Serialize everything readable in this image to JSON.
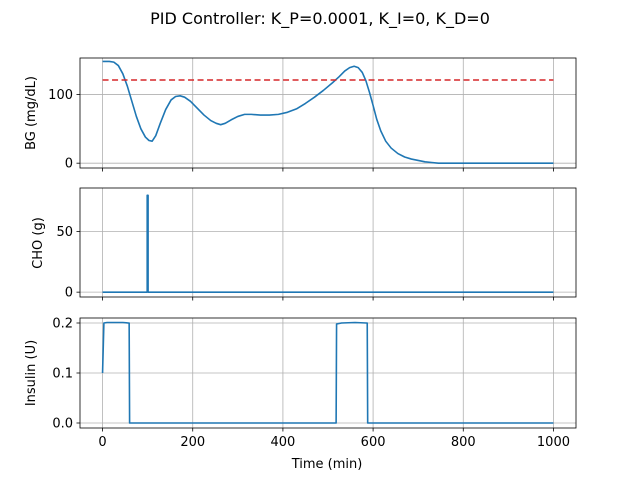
{
  "chart_data": {
    "type": "line",
    "title": "PID Controller: K_P=0.0001, K_I=0, K_D=0",
    "xlabel": "Time (min)",
    "xlim": [
      -50,
      1050
    ],
    "x_ticks": [
      0,
      200,
      400,
      600,
      800,
      1000
    ],
    "x_tick_labels": [
      "0",
      "200",
      "400",
      "600",
      "800",
      "1000"
    ],
    "grid": true,
    "subplots": [
      {
        "ylabel": "BG (mg/dL)",
        "ylim": [
          -7,
          153
        ],
        "y_ticks": [
          0,
          100
        ],
        "y_tick_labels": [
          "0",
          "100"
        ],
        "series": [
          {
            "color": "#1f77b4",
            "style": "solid",
            "points": [
              [
                0,
                148
              ],
              [
                15,
                148
              ],
              [
                25,
                147
              ],
              [
                35,
                142
              ],
              [
                45,
                130
              ],
              [
                55,
                112
              ],
              [
                65,
                90
              ],
              [
                75,
                68
              ],
              [
                85,
                50
              ],
              [
                95,
                38
              ],
              [
                103,
                33
              ],
              [
                110,
                32
              ],
              [
                118,
                40
              ],
              [
                128,
                58
              ],
              [
                140,
                78
              ],
              [
                152,
                92
              ],
              [
                162,
                97
              ],
              [
                172,
                98
              ],
              [
                182,
                96
              ],
              [
                195,
                90
              ],
              [
                210,
                80
              ],
              [
                225,
                70
              ],
              [
                240,
                62
              ],
              [
                252,
                58
              ],
              [
                262,
                56
              ],
              [
                272,
                58
              ],
              [
                285,
                63
              ],
              [
                300,
                68
              ],
              [
                315,
                71
              ],
              [
                330,
                71
              ],
              [
                350,
                70
              ],
              [
                370,
                70
              ],
              [
                390,
                71
              ],
              [
                410,
                74
              ],
              [
                430,
                79
              ],
              [
                450,
                87
              ],
              [
                470,
                96
              ],
              [
                490,
                106
              ],
              [
                510,
                117
              ],
              [
                525,
                126
              ],
              [
                537,
                134
              ],
              [
                548,
                139
              ],
              [
                558,
                141
              ],
              [
                567,
                139
              ],
              [
                576,
                132
              ],
              [
                584,
                120
              ],
              [
                592,
                103
              ],
              [
                600,
                84
              ],
              [
                608,
                64
              ],
              [
                617,
                47
              ],
              [
                628,
                32
              ],
              [
                640,
                22
              ],
              [
                655,
                14
              ],
              [
                670,
                9
              ],
              [
                685,
                6
              ],
              [
                700,
                4
              ],
              [
                715,
                2
              ],
              [
                730,
                1
              ],
              [
                745,
                0
              ],
              [
                1000,
                0
              ]
            ]
          },
          {
            "color": "#d62728",
            "style": "dashed",
            "points": [
              [
                0,
                121
              ],
              [
                1000,
                121
              ]
            ]
          }
        ]
      },
      {
        "ylabel": "CHO (g)",
        "ylim": [
          -4,
          86
        ],
        "y_ticks": [
          0,
          50
        ],
        "y_tick_labels": [
          "0",
          "50"
        ],
        "series": [
          {
            "color": "#1f77b4",
            "style": "solid",
            "points": [
              [
                0,
                0
              ],
              [
                99,
                0
              ],
              [
                99,
                80
              ],
              [
                101,
                80
              ],
              [
                101,
                0
              ],
              [
                1000,
                0
              ]
            ]
          }
        ]
      },
      {
        "ylabel": "Insulin (U)",
        "ylim": [
          -0.01,
          0.21
        ],
        "y_ticks": [
          0,
          0.1,
          0.2
        ],
        "y_tick_labels": [
          "0.0",
          "0.1",
          "0.2"
        ],
        "series": [
          {
            "color": "#1f77b4",
            "style": "solid",
            "points": [
              [
                0,
                0.1
              ],
              [
                3,
                0.2
              ],
              [
                10,
                0.201
              ],
              [
                25,
                0.201
              ],
              [
                45,
                0.201
              ],
              [
                57,
                0.2
              ],
              [
                59,
                0.2
              ],
              [
                60,
                0
              ],
              [
                518,
                0
              ],
              [
                519,
                0.198
              ],
              [
                530,
                0.2
              ],
              [
                560,
                0.201
              ],
              [
                585,
                0.2
              ],
              [
                587,
                0.2
              ],
              [
                588,
                0
              ],
              [
                1000,
                0
              ]
            ]
          }
        ]
      }
    ]
  }
}
